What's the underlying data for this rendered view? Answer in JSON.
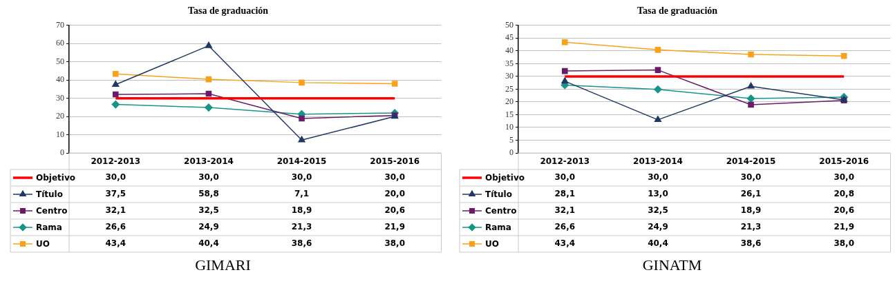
{
  "chart_data": [
    {
      "type": "line",
      "title": "Tasa de graduación",
      "categories": [
        "2012-2013",
        "2013-2014",
        "2014-2015",
        "2015-2016"
      ],
      "ylim": [
        0,
        70
      ],
      "yticks": [
        0,
        10,
        20,
        30,
        40,
        50,
        60,
        70
      ],
      "grid": "y",
      "legend": "bottom",
      "line_style": "solid",
      "series": [
        {
          "name": "Objetivo",
          "color": "#ff0000",
          "marker": "none",
          "values": [
            30.0,
            30.0,
            30.0,
            30.0
          ],
          "value_labels": [
            "30,0",
            "30,0",
            "30,0",
            "30,0"
          ]
        },
        {
          "name": "Título",
          "color": "#1f3864",
          "marker": "triangle",
          "values": [
            37.5,
            58.8,
            7.1,
            20.0
          ],
          "value_labels": [
            "37,5",
            "58,8",
            "7,1",
            "20,0"
          ]
        },
        {
          "name": "Centro",
          "color": "#6a1b6a",
          "marker": "square",
          "values": [
            32.1,
            32.5,
            18.9,
            20.6
          ],
          "value_labels": [
            "32,1",
            "32,5",
            "18,9",
            "20,6"
          ]
        },
        {
          "name": "Rama",
          "color": "#16948a",
          "marker": "diamond",
          "values": [
            26.6,
            24.9,
            21.3,
            21.9
          ],
          "value_labels": [
            "26,6",
            "24,9",
            "21,3",
            "21,9"
          ]
        },
        {
          "name": "UO",
          "color": "#f9a11b",
          "marker": "square",
          "values": [
            43.4,
            40.4,
            38.6,
            38.0
          ],
          "value_labels": [
            "43,4",
            "40,4",
            "38,6",
            "38,0"
          ]
        }
      ],
      "annotations": [
        "GIMARI"
      ]
    },
    {
      "type": "line",
      "title": "Tasa de graduación",
      "categories": [
        "2012-2013",
        "2013-2014",
        "2014-2015",
        "2015-2016"
      ],
      "ylim": [
        0,
        50
      ],
      "yticks": [
        0,
        5,
        10,
        15,
        20,
        25,
        30,
        35,
        40,
        45,
        50
      ],
      "grid": "y",
      "legend": "bottom",
      "line_style": "solid",
      "series": [
        {
          "name": "Objetivo",
          "color": "#ff0000",
          "marker": "none",
          "values": [
            30.0,
            30.0,
            30.0,
            30.0
          ],
          "value_labels": [
            "30,0",
            "30,0",
            "30,0",
            "30,0"
          ]
        },
        {
          "name": "Título",
          "color": "#1f3864",
          "marker": "triangle",
          "values": [
            28.1,
            13.0,
            26.1,
            20.8
          ],
          "value_labels": [
            "28,1",
            "13,0",
            "26,1",
            "20,8"
          ]
        },
        {
          "name": "Centro",
          "color": "#6a1b6a",
          "marker": "square",
          "values": [
            32.1,
            32.5,
            18.9,
            20.6
          ],
          "value_labels": [
            "32,1",
            "32,5",
            "18,9",
            "20,6"
          ]
        },
        {
          "name": "Rama",
          "color": "#16948a",
          "marker": "diamond",
          "values": [
            26.6,
            24.9,
            21.3,
            21.9
          ],
          "value_labels": [
            "26,6",
            "24,9",
            "21,3",
            "21,9"
          ]
        },
        {
          "name": "UO",
          "color": "#f9a11b",
          "marker": "square",
          "values": [
            43.4,
            40.4,
            38.6,
            38.0
          ],
          "value_labels": [
            "43,4",
            "40,4",
            "38,6",
            "38,0"
          ]
        }
      ],
      "annotations": [
        "GINATM"
      ]
    }
  ]
}
